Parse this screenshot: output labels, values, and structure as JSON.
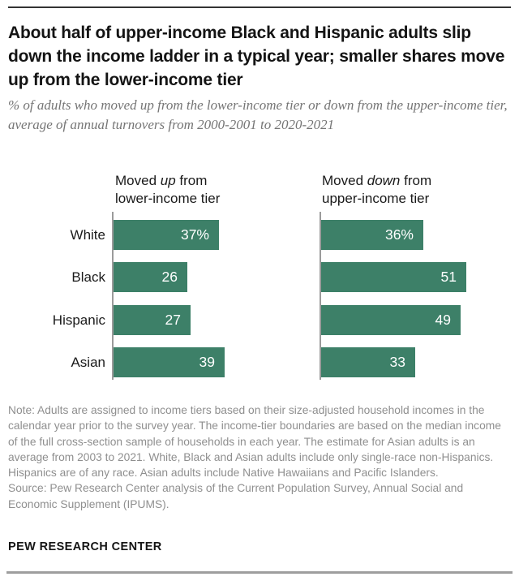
{
  "page": {
    "title": "About half of upper-income Black and Hispanic adults slip down the income ladder in a typical year; smaller shares move up from the lower-income tier",
    "subtitle": "% of adults who moved up from the lower-income tier or down from the upper-income tier, average of annual turnovers from 2000-2001 to 2020-2021",
    "note": "Note: Adults are assigned to income tiers based on their size-adjusted household incomes in the calendar year prior to the survey year. The income-tier boundaries are based on the median income of the full cross-section sample of households in each year. The estimate for Asian adults is an average from 2003 to 2021. White, Black and Asian adults include only single-race non-Hispanics. Hispanics are of any race. Asian adults include Native Hawaiians and Pacific Islanders.",
    "source": "Source: Pew Research Center analysis of the Current Population Survey, Annual Social and Economic Supplement (IPUMS).",
    "footer": "PEW RESEARCH CENTER"
  },
  "chart_data": {
    "type": "bar",
    "orientation": "horizontal",
    "categories": [
      "White",
      "Black",
      "Hispanic",
      "Asian"
    ],
    "series": [
      {
        "name": "Moved up from lower-income tier",
        "header": {
          "pre": "Moved ",
          "italic": "up",
          "post": " from",
          "line2": "lower-income tier"
        },
        "values": [
          37,
          26,
          27,
          39
        ],
        "labels": [
          "37%",
          "26",
          "27",
          "39"
        ]
      },
      {
        "name": "Moved down from upper-income tier",
        "header": {
          "pre": "Moved ",
          "italic": "down",
          "post": " from",
          "line2": "upper-income tier"
        },
        "values": [
          36,
          51,
          49,
          33
        ],
        "labels": [
          "36%",
          "51",
          "49",
          "33"
        ]
      }
    ],
    "xlim": [
      0,
      60
    ],
    "grid": false,
    "legend_position": "panel-headers",
    "value_labels_inside_bars": true
  },
  "colors": {
    "bar": "#3D8068",
    "axis": "#9B9B9B",
    "title": "#141414",
    "subtitle": "#757575",
    "note": "#8F8F8F",
    "value_label": "#FFFFFF",
    "rule_top": "#333333",
    "rule_bottom": "#9E9E9E"
  }
}
